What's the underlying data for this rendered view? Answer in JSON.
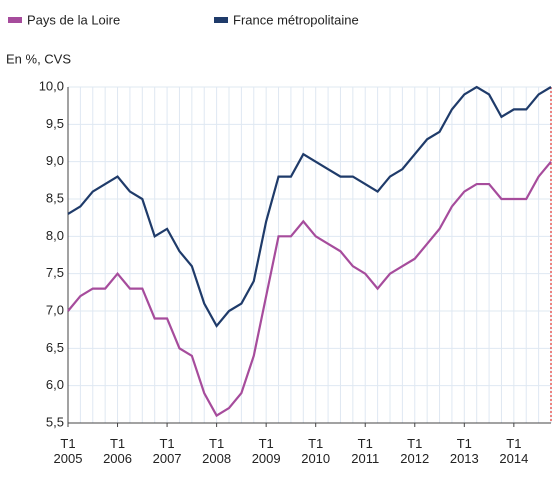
{
  "chart_data": {
    "type": "line",
    "subtitle": "En %, CVS",
    "categories": [
      "T1\n2005",
      null,
      null,
      null,
      "T1\n2006",
      null,
      null,
      null,
      "T1\n2007",
      null,
      null,
      null,
      "T1\n2008",
      null,
      null,
      null,
      "T1\n2009",
      null,
      null,
      null,
      "T1\n2010",
      null,
      null,
      null,
      "T1\n2011",
      null,
      null,
      null,
      "T1\n2012",
      null,
      null,
      null,
      "T1\n2013",
      null,
      null,
      null,
      "T1\n2014",
      null,
      null,
      null
    ],
    "series": [
      {
        "name": "Pays de la Loire",
        "color": "#a64c9c",
        "values": [
          7.0,
          7.2,
          7.3,
          7.3,
          7.5,
          7.3,
          7.3,
          6.9,
          6.9,
          6.5,
          6.4,
          5.9,
          5.6,
          5.7,
          5.9,
          6.4,
          7.2,
          8.0,
          8.0,
          8.2,
          8.0,
          7.9,
          7.8,
          7.6,
          7.5,
          7.3,
          7.5,
          7.6,
          7.7,
          7.9,
          8.1,
          8.4,
          8.6,
          8.7,
          8.7,
          8.5,
          8.5,
          8.5,
          8.8,
          9.0
        ]
      },
      {
        "name": "France métropolitaine",
        "color": "#1f3b6a",
        "values": [
          8.3,
          8.4,
          8.6,
          8.7,
          8.8,
          8.6,
          8.5,
          8.0,
          8.1,
          7.8,
          7.6,
          7.1,
          6.8,
          7.0,
          7.1,
          7.4,
          8.2,
          8.8,
          8.8,
          9.1,
          9.0,
          8.9,
          8.8,
          8.8,
          8.7,
          8.6,
          8.8,
          8.9,
          9.1,
          9.3,
          9.4,
          9.7,
          9.9,
          10.0,
          9.9,
          9.6,
          9.7,
          9.7,
          9.9,
          10.0
        ]
      }
    ],
    "ylim": [
      5.5,
      10.0
    ],
    "yticks": [
      {
        "value": 5.5,
        "label": "5,5"
      },
      {
        "value": 6.0,
        "label": "6,0"
      },
      {
        "value": 6.5,
        "label": "6,5"
      },
      {
        "value": 7.0,
        "label": "7,0"
      },
      {
        "value": 7.5,
        "label": "7,5"
      },
      {
        "value": 8.0,
        "label": "8,0"
      },
      {
        "value": 8.5,
        "label": "8,5"
      },
      {
        "value": 9.0,
        "label": "9,0"
      },
      {
        "value": 9.5,
        "label": "9,5"
      },
      {
        "value": 10.0,
        "label": "10,0"
      }
    ],
    "grid": true
  }
}
